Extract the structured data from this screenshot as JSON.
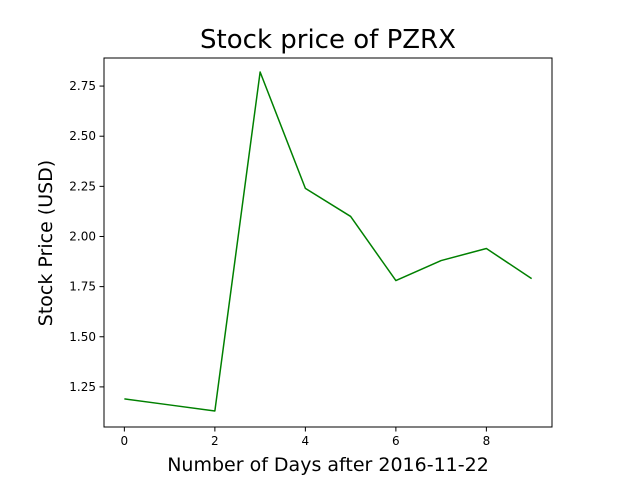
{
  "chart_data": {
    "type": "line",
    "title": "Stock price of PZRX",
    "xlabel": "Number of Days after 2016-11-22",
    "ylabel": "Stock Price (USD)",
    "xlim": [
      -0.45,
      9.45
    ],
    "ylim": [
      1.05,
      2.89
    ],
    "xticks": [
      0,
      2,
      4,
      6,
      8
    ],
    "xtick_labels": [
      "0",
      "2",
      "4",
      "6",
      "8"
    ],
    "yticks": [
      1.25,
      1.5,
      1.75,
      2.0,
      2.25,
      2.5,
      2.75
    ],
    "ytick_labels": [
      "1.25",
      "1.50",
      "1.75",
      "2.00",
      "2.25",
      "2.50",
      "2.75"
    ],
    "grid": false,
    "legend": "none",
    "series": [
      {
        "color": "#008000",
        "x": [
          0,
          1,
          2,
          3,
          4,
          5,
          6,
          7,
          8,
          9
        ],
        "y": [
          1.19,
          1.16,
          1.13,
          2.82,
          2.24,
          2.1,
          1.78,
          1.88,
          1.94,
          1.79
        ]
      }
    ]
  }
}
